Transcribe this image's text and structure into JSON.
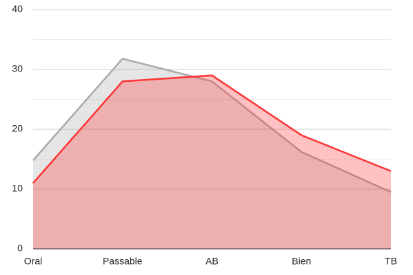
{
  "chart_data": {
    "type": "area",
    "categories": [
      "Oral",
      "Passable",
      "AB",
      "Bien",
      "TB"
    ],
    "series": [
      {
        "color": "#aaaaaa",
        "values": [
          14.8,
          31.8,
          28,
          16.2,
          9.5
        ]
      },
      {
        "color": "#ff3333",
        "values": [
          11,
          28,
          29,
          19,
          13
        ]
      }
    ],
    "ylim": [
      0,
      40
    ],
    "yticks": [
      0,
      10,
      20,
      30,
      40
    ],
    "minor_yticks": [
      5,
      15,
      25,
      35
    ],
    "grid": true
  }
}
